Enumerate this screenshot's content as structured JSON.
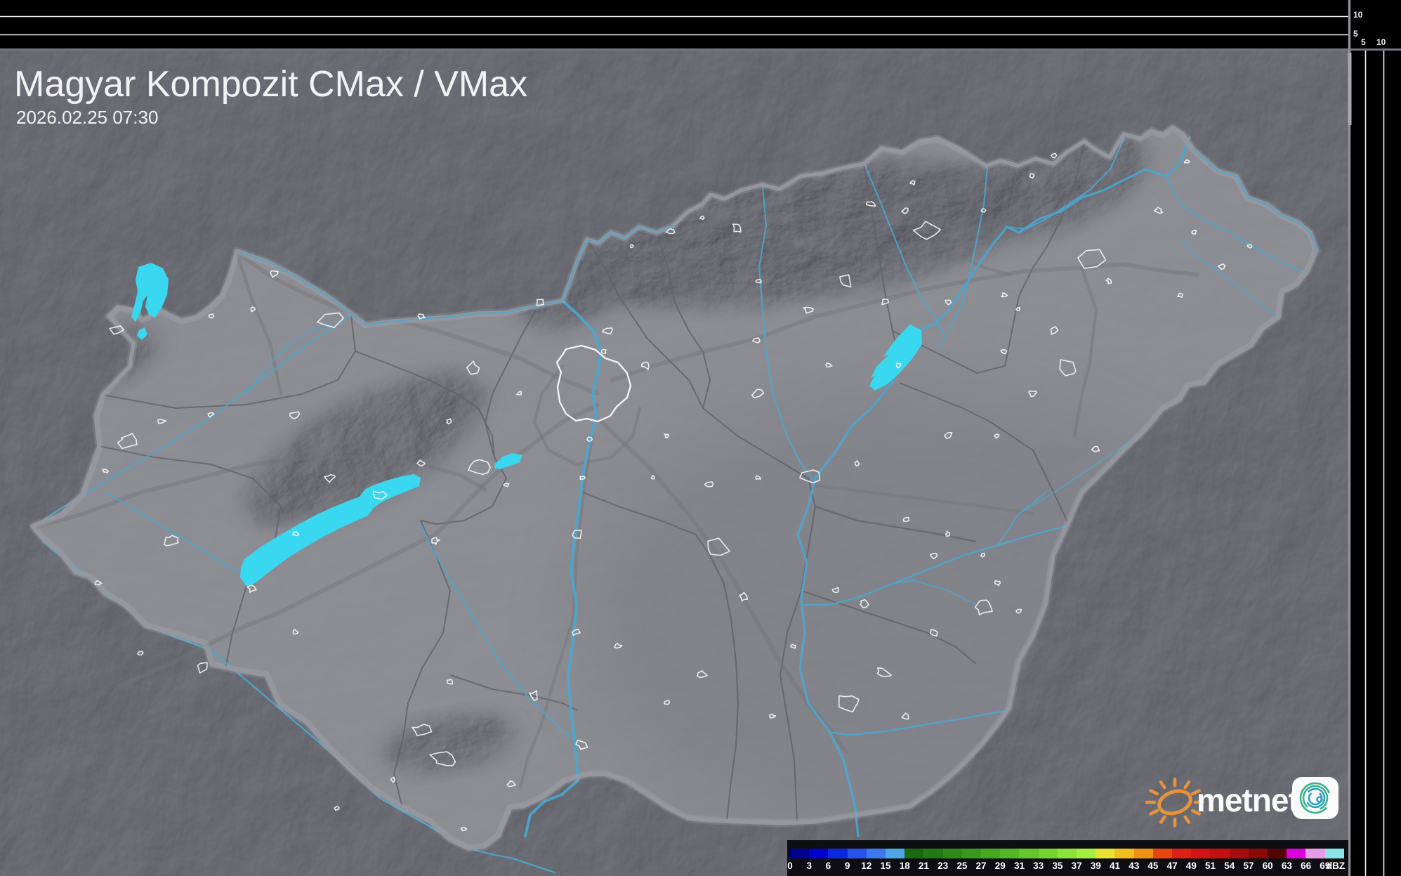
{
  "header": {
    "title": "Magyar Kompozit CMax / VMax",
    "timestamp": "2026.02.25 07:30"
  },
  "scale_panels": {
    "top_height_labels": [
      "10",
      "5"
    ],
    "right_height_labels": [
      "5",
      "10"
    ]
  },
  "legend": {
    "unit": "dBZ",
    "ticks": [
      "0",
      "3",
      "6",
      "9",
      "12",
      "15",
      "18",
      "21",
      "23",
      "25",
      "27",
      "29",
      "31",
      "33",
      "35",
      "37",
      "39",
      "41",
      "43",
      "45",
      "47",
      "49",
      "51",
      "54",
      "57",
      "60",
      "63",
      "66",
      "69"
    ],
    "colors": [
      "#00008E",
      "#0000CD",
      "#0A28E0",
      "#2851EB",
      "#3C78F0",
      "#4DA6E8",
      "#1A6B10",
      "#227A14",
      "#2E8A18",
      "#38991C",
      "#44A820",
      "#52B724",
      "#63C62A",
      "#74D530",
      "#8CE238",
      "#A5EE42",
      "#E8E232",
      "#F0BE20",
      "#F09314",
      "#E8460F",
      "#DC2014",
      "#D21414",
      "#C31010",
      "#A80C0C",
      "#8A0808",
      "#550404",
      "#DC00DC",
      "#E69BE6",
      "#8AE6E6"
    ]
  },
  "branding": {
    "logo_text": "metnet"
  },
  "map_colors": {
    "lake": "#39D8F0",
    "river": "#4AA6CF",
    "country_border": "#97979F",
    "county_border": "#62626A",
    "road": "#73737B",
    "city_outline": "#F5F5F5"
  }
}
